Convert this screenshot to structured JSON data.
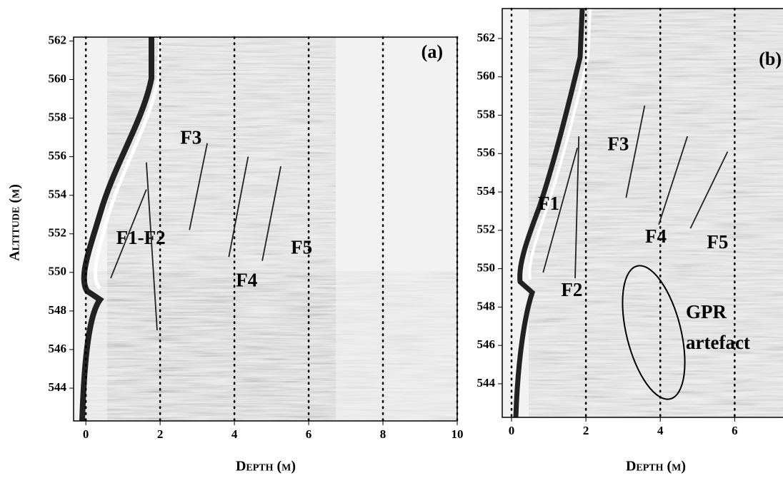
{
  "chart_data": [
    {
      "type": "radargram",
      "title": "(a)",
      "xlabel": "Depth (m)",
      "ylabel": "Altitude (m)",
      "xlim": [
        -0.33,
        10.0
      ],
      "ylim": [
        542.3,
        562.2
      ],
      "xticks": [
        0,
        2,
        4,
        6,
        8,
        10
      ],
      "yticks": [
        544,
        546,
        548,
        550,
        552,
        554,
        556,
        558,
        560,
        562
      ],
      "grid": "dotted",
      "line_color": "#222222",
      "annotations": [
        {
          "label": "F1-F2",
          "x": 1.48,
          "y": 551.7,
          "lines": [
            {
              "x": [
                0.67,
                1.63
              ],
              "y": [
                549.7,
                554.3
              ]
            },
            {
              "x": [
                1.63,
                1.92
              ],
              "y": [
                555.7,
                547.0
              ]
            }
          ]
        },
        {
          "label": "F3",
          "x": 2.83,
          "y": 556.9,
          "lines": [
            {
              "x": [
                2.79,
                3.27
              ],
              "y": [
                552.2,
                556.7
              ]
            }
          ]
        },
        {
          "label": "F4",
          "x": 4.33,
          "y": 549.5,
          "lines": [
            {
              "x": [
                3.85,
                4.37
              ],
              "y": [
                550.8,
                556.0
              ]
            }
          ]
        },
        {
          "label": "F5",
          "x": 5.81,
          "y": 551.2,
          "lines": [
            {
              "x": [
                4.75,
                5.25
              ],
              "y": [
                550.6,
                555.5
              ]
            }
          ]
        }
      ]
    },
    {
      "type": "radargram",
      "title": "(b)",
      "xlabel": "Depth (m)",
      "xlim": [
        -0.25,
        7.3
      ],
      "ylim": [
        542.25,
        563.56
      ],
      "xticks": [
        0,
        2,
        4,
        6
      ],
      "yticks": [
        544,
        546,
        548,
        550,
        552,
        554,
        556,
        558,
        560,
        562
      ],
      "grid": "dotted",
      "line_color": "#222222",
      "annotations": [
        {
          "label": "F1",
          "x": 1.0,
          "y": 553.3,
          "lines": [
            {
              "x": [
                0.85,
                1.77
              ],
              "y": [
                549.8,
                556.3
              ]
            }
          ]
        },
        {
          "label": "F2",
          "x": 1.62,
          "y": 548.8,
          "lines": [
            {
              "x": [
                1.71,
                1.81
              ],
              "y": [
                549.5,
                556.9
              ]
            }
          ]
        },
        {
          "label": "F3",
          "x": 2.87,
          "y": 556.4,
          "lines": [
            {
              "x": [
                3.08,
                3.58
              ],
              "y": [
                553.7,
                558.5
              ]
            }
          ]
        },
        {
          "label": "F4",
          "x": 3.88,
          "y": 551.6,
          "lines": [
            {
              "x": [
                3.96,
                4.73
              ],
              "y": [
                552.3,
                556.9
              ]
            }
          ]
        },
        {
          "label": "F5",
          "x": 5.54,
          "y": 551.3,
          "lines": [
            {
              "x": [
                4.81,
                5.81
              ],
              "y": [
                552.1,
                556.1
              ]
            }
          ]
        }
      ],
      "note": [
        "GPR",
        "artefact"
      ]
    }
  ]
}
